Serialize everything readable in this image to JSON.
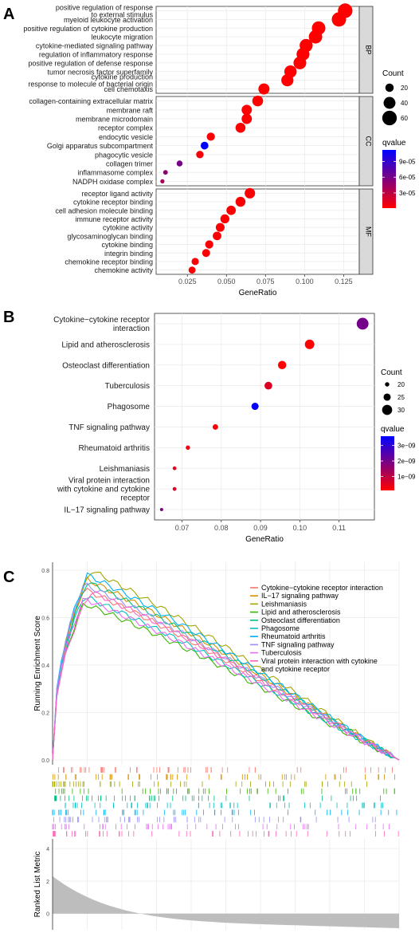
{
  "chart_data": [
    {
      "panel_label": "A",
      "type": "scatter",
      "xlabel": "GeneRatio",
      "xlim": [
        0.005,
        0.135
      ],
      "x_ticks": [
        "0.025",
        "0.050",
        "0.075",
        "0.100",
        "0.125"
      ],
      "x_tick_values": [
        0.025,
        0.05,
        0.075,
        0.1,
        0.125
      ],
      "facets": [
        {
          "name": "BP",
          "points": [
            {
              "term": "positive regulation of response\nto external stimulus",
              "x": 0.126,
              "count": 60,
              "q": 1e-06
            },
            {
              "term": "myeloid leukocyte activation",
              "x": 0.122,
              "count": 58,
              "q": 1e-06
            },
            {
              "term": "positive regulation of cytokine production",
              "x": 0.109,
              "count": 52,
              "q": 1e-06
            },
            {
              "term": "leukocyte migration",
              "x": 0.107,
              "count": 51,
              "q": 1e-06
            },
            {
              "term": "cytokine-mediated signaling pathway",
              "x": 0.101,
              "count": 48,
              "q": 1e-06
            },
            {
              "term": "regulation of inflammatory response",
              "x": 0.099,
              "count": 47,
              "q": 1e-06
            },
            {
              "term": "positive regulation of defense response",
              "x": 0.097,
              "count": 46,
              "q": 1e-06
            },
            {
              "term": "tumor necrosis factor superfamily",
              "x": 0.091,
              "count": 43,
              "q": 1e-06
            },
            {
              "term": "cytokine production\nresponse to molecule of bacterial origin",
              "x": 0.089,
              "count": 42,
              "q": 1e-06
            },
            {
              "term": "cell chemotaxis",
              "x": 0.074,
              "count": 35,
              "q": 1e-06
            }
          ]
        },
        {
          "name": "CC",
          "points": [
            {
              "term": "collagen-containing extracellular matrix",
              "x": 0.07,
              "count": 33,
              "q": 2e-06
            },
            {
              "term": "membrane raft",
              "x": 0.063,
              "count": 30,
              "q": 2e-06
            },
            {
              "term": "membrane microdomain",
              "x": 0.063,
              "count": 30,
              "q": 2e-06
            },
            {
              "term": "receptor complex",
              "x": 0.059,
              "count": 28,
              "q": 2e-06
            },
            {
              "term": "endocytic vesicle",
              "x": 0.04,
              "count": 19,
              "q": 3e-06
            },
            {
              "term": "Golgi apparatus subcompartment",
              "x": 0.036,
              "count": 17,
              "q": 0.000112
            },
            {
              "term": "phagocytic vesicle",
              "x": 0.033,
              "count": 16,
              "q": 5e-06
            },
            {
              "term": "collagen trimer",
              "x": 0.02,
              "count": 10,
              "q": 6e-05
            },
            {
              "term": "inflammasome complex",
              "x": 0.011,
              "count": 6,
              "q": 5e-05
            },
            {
              "term": "NADPH oxidase complex",
              "x": 0.009,
              "count": 5,
              "q": 4e-05
            }
          ]
        },
        {
          "name": "MF",
          "points": [
            {
              "term": "receptor ligand activity",
              "x": 0.065,
              "count": 31,
              "q": 3e-06
            },
            {
              "term": "cytokine receptor binding",
              "x": 0.059,
              "count": 28,
              "q": 3e-06
            },
            {
              "term": "cell adhesion molecule binding",
              "x": 0.053,
              "count": 25,
              "q": 3e-06
            },
            {
              "term": "immune receptor activity",
              "x": 0.049,
              "count": 23,
              "q": 3e-06
            },
            {
              "term": "cytokine activity",
              "x": 0.046,
              "count": 22,
              "q": 3e-06
            },
            {
              "term": "glycosaminoglycan binding",
              "x": 0.044,
              "count": 21,
              "q": 3e-06
            },
            {
              "term": "cytokine binding",
              "x": 0.039,
              "count": 19,
              "q": 3e-06
            },
            {
              "term": "integrin binding",
              "x": 0.037,
              "count": 18,
              "q": 3e-06
            },
            {
              "term": "chemokine receptor binding",
              "x": 0.03,
              "count": 15,
              "q": 3e-06
            },
            {
              "term": "chemokine activity",
              "x": 0.028,
              "count": 14,
              "q": 3e-06
            }
          ]
        }
      ],
      "size_legend": {
        "title": "Count",
        "values": [
          20,
          40,
          60
        ]
      },
      "color_legend": {
        "title": "qvalue",
        "ticks": [
          "9e-05",
          "6e-05",
          "3e-05"
        ],
        "tick_values": [
          9e-05,
          6e-05,
          3e-05
        ],
        "range": [
          1e-06,
          0.000112
        ],
        "low_color": "#ff0000",
        "high_color": "#0000ff"
      }
    },
    {
      "panel_label": "B",
      "type": "scatter",
      "xlabel": "GeneRatio",
      "xlim": [
        0.063,
        0.119
      ],
      "x_ticks": [
        "0.07",
        "0.08",
        "0.09",
        "0.10",
        "0.11"
      ],
      "x_tick_values": [
        0.07,
        0.08,
        0.09,
        0.1,
        0.11
      ],
      "points": [
        {
          "term": "Cytokine−cytokine receptor\ninteraction",
          "x": 0.116,
          "count": 33,
          "q": 2e-09
        },
        {
          "term": "Lipid and atherosclerosis",
          "x": 0.1025,
          "count": 29,
          "q": 1e-10
        },
        {
          "term": "Osteoclast differentiation",
          "x": 0.0955,
          "count": 27,
          "q": 1e-10
        },
        {
          "term": "Tuberculosis",
          "x": 0.092,
          "count": 26,
          "q": 6e-10
        },
        {
          "term": "Phagosome",
          "x": 0.0886,
          "count": 25,
          "q": 3.5e-09
        },
        {
          "term": "TNF signaling pathway",
          "x": 0.0785,
          "count": 22,
          "q": 2e-10
        },
        {
          "term": "Rheumatoid arthritis",
          "x": 0.0715,
          "count": 20,
          "q": 3e-10
        },
        {
          "term": "Leishmaniasis",
          "x": 0.0681,
          "count": 19,
          "q": 5e-10
        },
        {
          "term": "Viral protein interaction\nwith cytokine and cytokine\nreceptor",
          "x": 0.0681,
          "count": 19,
          "q": 6e-10
        },
        {
          "term": "IL−17 signaling pathway",
          "x": 0.0648,
          "count": 18,
          "q": 1.8e-09
        }
      ],
      "size_legend": {
        "title": "Count",
        "values": [
          20,
          25,
          30
        ]
      },
      "color_legend": {
        "title": "qvalue",
        "ticks": [
          "3e−09",
          "2e−09",
          "1e−09"
        ],
        "tick_values": [
          3e-09,
          2e-09,
          1e-09
        ],
        "range": [
          1e-10,
          3.6e-09
        ],
        "low_color": "#ff0000",
        "high_color": "#0000ff"
      }
    },
    {
      "panel_label": "C",
      "type": "line",
      "ylabel": "Running Enrichment Score",
      "ylim": [
        0.0,
        0.8
      ],
      "y_ticks": [
        "0.0",
        "0.2",
        "0.4",
        "0.6",
        "0.8"
      ],
      "y_tick_values": [
        0.0,
        0.2,
        0.4,
        0.6,
        0.8
      ],
      "x_range": [
        0,
        1
      ],
      "series": [
        {
          "name": "Cytokine−cytokine receptor interaction",
          "color": "#F8766D",
          "peak_x": 0.09,
          "peak": 0.72
        },
        {
          "name": "IL−17 signaling pathway",
          "color": "#D89000",
          "peak_x": 0.1,
          "peak": 0.76
        },
        {
          "name": "Leishmaniasis",
          "color": "#A3A500",
          "peak_x": 0.11,
          "peak": 0.8
        },
        {
          "name": "Lipid and atherosclerosis",
          "color": "#39B600",
          "peak_x": 0.09,
          "peak": 0.66
        },
        {
          "name": "Osteoclast differentiation",
          "color": "#00BF7D",
          "peak_x": 0.1,
          "peak": 0.75
        },
        {
          "name": "Phagosome",
          "color": "#00BFC4",
          "peak_x": 0.09,
          "peak": 0.69
        },
        {
          "name": "Rheumatoid arthritis",
          "color": "#00B0F6",
          "peak_x": 0.1,
          "peak": 0.78
        },
        {
          "name": "TNF signaling pathway",
          "color": "#9590FF",
          "peak_x": 0.09,
          "peak": 0.74
        },
        {
          "name": "Tuberculosis",
          "color": "#E76BF3",
          "peak_x": 0.09,
          "peak": 0.68
        },
        {
          "name": "Viral protein interaction with cytokine\nand cytokine receptor",
          "color": "#FF62BC",
          "peak_x": 0.11,
          "peak": 0.71
        }
      ],
      "hit_tick_count_per_series": 50,
      "ranked_list": {
        "ylabel": "Ranked List Metric",
        "y_ticks": [
          "0",
          "2",
          "4"
        ],
        "y_tick_values": [
          0,
          2,
          4
        ],
        "ylim": [
          -0.8,
          4.4
        ],
        "start_value": 2.0,
        "end_value": -0.6
      }
    }
  ]
}
